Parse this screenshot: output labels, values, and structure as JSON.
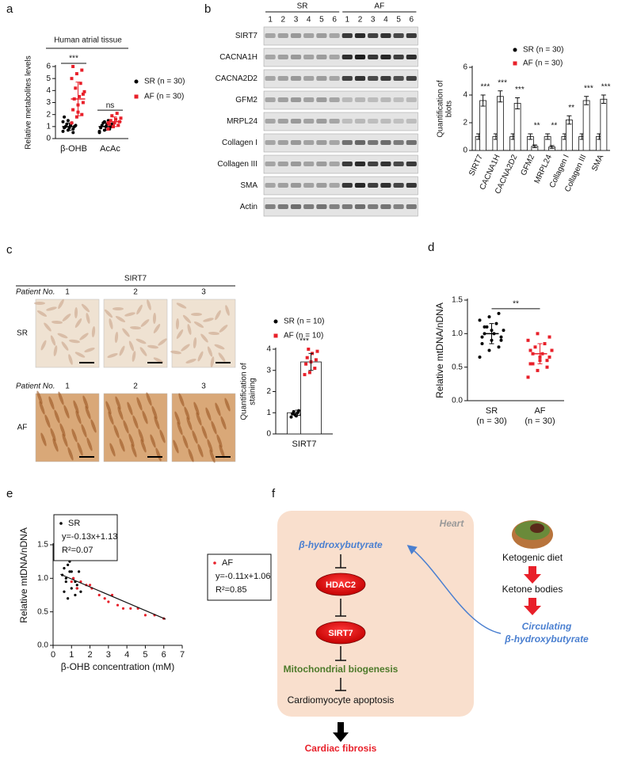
{
  "panel_labels": [
    "a",
    "b",
    "c",
    "d",
    "e",
    "f"
  ],
  "chart_data": [
    {
      "type": "dot_plot",
      "title": "Human atrial tissue",
      "ylabel": "Relative metabolites levels",
      "categories": [
        "β-OHB",
        "AcAc"
      ],
      "significance": [
        "***",
        "ns"
      ],
      "ylim": [
        0,
        6
      ],
      "yticks": [
        0,
        1,
        2,
        3,
        4,
        5,
        6
      ],
      "series": [
        {
          "name": "SR (n = 30)",
          "color": "#000000",
          "values": [
            1.0,
            1.0
          ],
          "sd": [
            0.3,
            0.3
          ],
          "points": [
            [
              0.6,
              0.7,
              0.8,
              0.9,
              0.9,
              1.0,
              1.0,
              1.1,
              1.1,
              1.2,
              1.3,
              1.4,
              1.5,
              0.5,
              1.8
            ],
            [
              0.5,
              0.7,
              0.8,
              0.9,
              1.0,
              1.0,
              1.1,
              1.2,
              1.2,
              1.3,
              1.5,
              0.6,
              1.4
            ]
          ]
        },
        {
          "name": "AF (n = 30)",
          "color": "#e8202a",
          "values": [
            3.3,
            1.4
          ],
          "sd": [
            1.4,
            0.4
          ],
          "points": [
            [
              1.3,
              1.8,
              2.0,
              2.4,
              2.8,
              3.0,
              3.3,
              3.5,
              3.9,
              4.2,
              4.6,
              5.0,
              5.4,
              5.7,
              6.0,
              2.2,
              3.7
            ],
            [
              0.8,
              1.0,
              1.1,
              1.2,
              1.3,
              1.4,
              1.5,
              1.6,
              1.7,
              1.9,
              2.1,
              1.3,
              1.0
            ]
          ]
        }
      ]
    },
    {
      "type": "bar_dot",
      "ylabel_lines": [
        "Quantification of",
        "blots"
      ],
      "categories": [
        "SIRT7",
        "CACNA1H",
        "CACNA2D2",
        "GFM2",
        "MRPL24",
        "Collagen I",
        "Collagen III",
        "SMA"
      ],
      "significance": [
        "***",
        "***",
        "***",
        "**",
        "**",
        "**",
        "***",
        "***"
      ],
      "ylim": [
        0,
        6
      ],
      "yticks": [
        0,
        2,
        4,
        6
      ],
      "series": [
        {
          "name": "SR (n = 30)",
          "color": "#000000",
          "values": [
            1.0,
            1.0,
            1.0,
            1.0,
            1.0,
            1.0,
            1.0,
            1.0
          ],
          "sd": [
            0.2,
            0.2,
            0.2,
            0.2,
            0.2,
            0.2,
            0.2,
            0.2
          ]
        },
        {
          "name": "AF (n = 30)",
          "color": "#e8202a",
          "values": [
            3.6,
            3.9,
            3.4,
            0.3,
            0.25,
            2.2,
            3.6,
            3.7
          ],
          "sd": [
            0.4,
            0.4,
            0.4,
            0.1,
            0.1,
            0.3,
            0.3,
            0.3
          ]
        }
      ]
    },
    {
      "type": "bar_dot",
      "ylabel_lines": [
        "Quantification of",
        "staining"
      ],
      "categories": [
        "SIRT7"
      ],
      "significance": [
        "***"
      ],
      "ylim": [
        0,
        4
      ],
      "yticks": [
        0,
        1,
        2,
        3,
        4
      ],
      "series": [
        {
          "name": "SR (n = 10)",
          "color": "#000000",
          "values": [
            1.0
          ],
          "sd": [
            0.12
          ],
          "points": [
            [
              0.8,
              0.85,
              0.9,
              0.95,
              1.0,
              1.0,
              1.05,
              1.1,
              1.2,
              0.9
            ]
          ]
        },
        {
          "name": "AF (n = 10)",
          "color": "#e8202a",
          "values": [
            3.4
          ],
          "sd": [
            0.4
          ],
          "points": [
            [
              2.8,
              2.9,
              3.1,
              3.3,
              3.4,
              3.5,
              3.6,
              3.8,
              3.9,
              4.0
            ]
          ]
        }
      ]
    },
    {
      "type": "dot_plot",
      "ylabel": "Relative mtDNA/nDNA",
      "categories": [
        "SR",
        "AF"
      ],
      "category_sublabels": [
        "(n = 30)",
        "(n = 30)"
      ],
      "significance": [
        "**"
      ],
      "ylim": [
        0,
        1.5
      ],
      "yticks": [
        {
          "value": 0,
          "label": "0.0"
        },
        {
          "value": 0.5,
          "label": "0.5"
        },
        {
          "value": 1,
          "label": "1.0"
        },
        {
          "value": 1.5,
          "label": "1.5"
        }
      ],
      "colors": [
        "#000000",
        "#e8202a"
      ],
      "values": [
        1.0,
        0.7
      ],
      "sd": [
        0.15,
        0.15
      ],
      "points": [
        [
          0.65,
          0.75,
          0.8,
          0.85,
          0.9,
          0.95,
          1.0,
          1.0,
          1.05,
          1.1,
          1.15,
          1.2,
          1.25,
          1.3,
          0.95,
          1.05,
          0.9,
          1.1
        ],
        [
          0.35,
          0.45,
          0.5,
          0.55,
          0.6,
          0.65,
          0.7,
          0.7,
          0.75,
          0.8,
          0.85,
          0.9,
          1.0,
          0.6,
          0.75,
          0.65,
          0.95,
          0.55
        ]
      ]
    },
    {
      "type": "scatter",
      "xlabel": "β-OHB concentration (mM)",
      "ylabel": "Relative mtDNA/nDNA",
      "xlim": [
        0,
        7
      ],
      "xticks": [
        0,
        1,
        2,
        3,
        4,
        5,
        6,
        7
      ],
      "ylim": [
        0,
        1.5
      ],
      "yticks": [
        {
          "value": 0,
          "label": "0.0"
        },
        {
          "value": 0.5,
          "label": "0.5"
        },
        {
          "value": 1,
          "label": "1.0"
        },
        {
          "value": 1.5,
          "label": "1.5"
        }
      ],
      "trend_line": {
        "x": [
          0.4,
          6.1
        ],
        "y": [
          1.06,
          0.39
        ]
      },
      "series": [
        {
          "name": "SR",
          "equation": "y=-0.13x+1.13",
          "r2": "R²=0.07",
          "color": "#000000",
          "x": [
            0.5,
            0.6,
            0.7,
            0.8,
            0.9,
            1.0,
            1.1,
            1.2,
            1.3,
            1.4,
            1.5,
            0.6,
            0.9,
            1.2,
            0.8,
            1.0,
            1.3,
            0.7
          ],
          "y": [
            1.05,
            1.15,
            0.95,
            1.2,
            1.1,
            0.85,
            1.0,
            0.75,
            0.9,
            1.1,
            0.8,
            0.8,
            1.25,
            0.95,
            0.7,
            1.1,
            0.85,
            1.0
          ]
        },
        {
          "name": "AF",
          "equation": "y=-0.11x+1.06",
          "r2": "R²=0.85",
          "color": "#e8202a",
          "x": [
            1.0,
            1.5,
            1.8,
            2.1,
            2.5,
            2.8,
            3.2,
            3.5,
            3.8,
            4.2,
            4.6,
            5.0,
            5.5,
            6.0,
            1.3,
            2.0,
            3.0,
            1.1
          ],
          "y": [
            0.95,
            0.95,
            0.9,
            0.85,
            0.75,
            0.7,
            0.75,
            0.6,
            0.55,
            0.55,
            0.55,
            0.45,
            0.45,
            0.4,
            0.85,
            0.9,
            0.65,
            1.0
          ]
        }
      ]
    }
  ],
  "blot": {
    "groups": [
      "SR",
      "AF"
    ],
    "lanes": [
      "1",
      "2",
      "3",
      "4",
      "5",
      "6",
      "1",
      "2",
      "3",
      "4",
      "5",
      "6"
    ],
    "rows": [
      "SIRT7",
      "CACNA1H",
      "CACNA2D2",
      "GFM2",
      "MRPL24",
      "Collagen I",
      "Collagen III",
      "SMA",
      "Actin"
    ]
  },
  "staining": {
    "title": "SIRT7",
    "rows": [
      {
        "patient_label": "Patient No.",
        "numbers": [
          "1",
          "2",
          "3"
        ],
        "group": "SR"
      },
      {
        "patient_label": "Patient No.",
        "numbers": [
          "1",
          "2",
          "3"
        ],
        "group": "AF"
      }
    ]
  },
  "diagram": {
    "organ": "Heart",
    "metabolite": "β-hydroxybutyrate",
    "node1": "HDAC2",
    "node2": "SIRT7",
    "process": "Mitochondrial biogenesis",
    "outcome": "Cardiomyocyte apoptosis",
    "result": "Cardiac fibrosis",
    "source": [
      "Ketogenic diet",
      "Ketone bodies"
    ],
    "circulating": [
      "Circulating",
      "β-hydroxybutyrate"
    ]
  }
}
